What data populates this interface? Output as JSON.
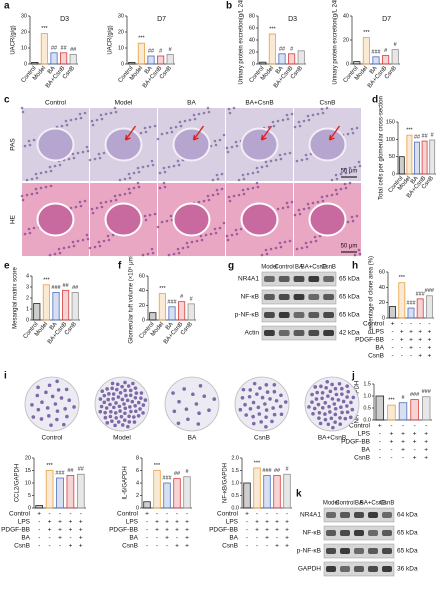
{
  "panel_letters": [
    "a",
    "b",
    "c",
    "d",
    "e",
    "f",
    "g",
    "h",
    "i",
    "j",
    "k"
  ],
  "chart_data": [
    {
      "type": "bar",
      "subtitle": "D3",
      "ylabel": "UACR(g/g)",
      "categories": [
        "Control",
        "Model",
        "BA",
        "BA+CsnB",
        "CsnB"
      ],
      "values": [
        1,
        19,
        7,
        7,
        6
      ],
      "annotations": [
        null,
        "***",
        "##",
        "##",
        "##"
      ],
      "colors": [
        "#222222",
        "#e8a040",
        "#4a6fc0",
        "#d83c3c",
        "#909090"
      ],
      "ylim": [
        0,
        30
      ],
      "yticks": [
        0,
        10,
        20,
        30
      ]
    },
    {
      "type": "bar",
      "subtitle": "D7",
      "ylabel": "UACR(g/g)",
      "categories": [
        "Control",
        "Model",
        "BA",
        "BA+CsnB",
        "CsnB"
      ],
      "values": [
        1,
        13,
        5,
        5,
        6
      ],
      "annotations": [
        null,
        "***",
        "##",
        "#",
        "#"
      ],
      "colors": [
        "#222222",
        "#e8a040",
        "#4a6fc0",
        "#d83c3c",
        "#909090"
      ],
      "ylim": [
        0,
        30
      ],
      "yticks": [
        0,
        10,
        20,
        30
      ]
    },
    {
      "type": "bar",
      "subtitle": "D3",
      "ylabel": "Urinary protein excretion(g/L 24h)",
      "categories": [
        "Control",
        "Model",
        "BA",
        "BA+CsnB",
        "CsnB"
      ],
      "values": [
        3,
        50,
        17,
        17,
        22
      ],
      "annotations": [
        null,
        "***",
        "##",
        "#",
        null
      ],
      "colors": [
        "#222222",
        "#e8a040",
        "#4a6fc0",
        "#d83c3c",
        "#909090"
      ],
      "ylim": [
        0,
        80
      ],
      "yticks": [
        0,
        20,
        40,
        60,
        80
      ]
    },
    {
      "type": "bar",
      "subtitle": "D7",
      "ylabel": "Urinary protein excretion(g/L 24h)",
      "categories": [
        "Control",
        "Model",
        "BA",
        "BA+CsnB",
        "CsnB"
      ],
      "values": [
        2,
        22,
        6,
        7,
        12
      ],
      "annotations": [
        null,
        "***",
        "###",
        "#",
        "#"
      ],
      "colors": [
        "#222222",
        "#e8a040",
        "#4a6fc0",
        "#d83c3c",
        "#909090"
      ],
      "ylim": [
        0,
        40
      ],
      "yticks": [
        0,
        20,
        40
      ]
    },
    {
      "type": "bar",
      "ylabel": "Total cells per glomerular cross-section",
      "categories": [
        "Control",
        "Model",
        "BA",
        "BA+CsnB",
        "CsnB"
      ],
      "values": [
        50,
        112,
        92,
        95,
        98
      ],
      "annotations": [
        null,
        "***",
        "##",
        "##",
        "#"
      ],
      "colors": [
        "#222222",
        "#e8a040",
        "#4a6fc0",
        "#d83c3c",
        "#909090"
      ],
      "ylim": [
        0,
        150
      ],
      "yticks": [
        0,
        50,
        100,
        150
      ]
    },
    {
      "type": "bar",
      "ylabel": "Mesangial matrix score",
      "categories": [
        "Control",
        "Model",
        "BA",
        "BA+CsnB",
        "CsnB"
      ],
      "values": [
        1.5,
        3.2,
        2.5,
        2.7,
        2.5
      ],
      "annotations": [
        null,
        "***",
        "###",
        "##",
        "##"
      ],
      "colors": [
        "#222222",
        "#e8a040",
        "#4a6fc0",
        "#d83c3c",
        "#909090"
      ],
      "ylim": [
        0,
        4
      ],
      "yticks": [
        0,
        1,
        2,
        3,
        4
      ]
    },
    {
      "type": "bar",
      "ylabel": "Glomerular tuft volume (×10⁵ μm³)",
      "categories": [
        "Control",
        "Model",
        "BA",
        "BA+CsnB",
        "CsnB"
      ],
      "values": [
        10,
        36,
        18,
        25,
        22
      ],
      "annotations": [
        null,
        "***",
        "###",
        "#",
        "#"
      ],
      "colors": [
        "#222222",
        "#e8a040",
        "#4a6fc0",
        "#d83c3c",
        "#909090"
      ],
      "ylim": [
        0,
        60
      ],
      "yticks": [
        0,
        20,
        40,
        60
      ]
    },
    {
      "type": "bar",
      "ylabel": "Percentage of clone area (%)",
      "values": [
        15,
        46,
        13,
        25,
        29
      ],
      "annotations": [
        null,
        "***",
        "###",
        "###",
        "###"
      ],
      "colors": [
        "#222222",
        "#e8a040",
        "#4a6fc0",
        "#d83c3c",
        "#909090"
      ],
      "ylim": [
        0,
        60
      ],
      "yticks": [
        0,
        20,
        40,
        60
      ]
    },
    {
      "type": "bar",
      "ylabel": "NR4A1/GAPDH",
      "values": [
        1.0,
        0.62,
        0.72,
        0.85,
        0.97
      ],
      "annotations": [
        null,
        "***",
        "#",
        "###",
        "###"
      ],
      "colors": [
        "#222222",
        "#e8a040",
        "#4a6fc0",
        "#d83c3c",
        "#909090"
      ],
      "ylim": [
        0,
        1.5
      ],
      "yticks": [
        {
          "value": 0,
          "label": "0.0"
        },
        0.5,
        {
          "value": 1,
          "label": "1.0"
        },
        1.5
      ]
    },
    {
      "type": "bar",
      "ylabel": "CCL2/GAPDH",
      "values": [
        1,
        15,
        12,
        13,
        13.5
      ],
      "annotations": [
        null,
        "***",
        "###",
        "##",
        "##"
      ],
      "colors": [
        "#222222",
        "#e8a040",
        "#4a6fc0",
        "#d83c3c",
        "#909090"
      ],
      "ylim": [
        0,
        20
      ],
      "yticks": [
        0,
        5,
        10,
        15,
        20
      ]
    },
    {
      "type": "bar",
      "ylabel": "IL-6/GAPDH",
      "values": [
        1,
        6,
        4,
        4.7,
        5
      ],
      "annotations": [
        null,
        "***",
        "###",
        "##",
        "#"
      ],
      "colors": [
        "#222222",
        "#e8a040",
        "#4a6fc0",
        "#d83c3c",
        "#909090"
      ],
      "ylim": [
        0,
        8
      ],
      "yticks": [
        0,
        2,
        4,
        6,
        8
      ]
    },
    {
      "type": "bar",
      "ylabel": "NF-κB/GAPDH",
      "values": [
        1.0,
        1.6,
        1.3,
        1.3,
        1.35
      ],
      "annotations": [
        null,
        "***",
        "###",
        "##",
        "#"
      ],
      "colors": [
        "#222222",
        "#e8a040",
        "#4a6fc0",
        "#d83c3c",
        "#909090"
      ],
      "ylim": [
        0,
        2
      ],
      "yticks": [
        {
          "value": 0,
          "label": "0.0"
        },
        0.5,
        {
          "value": 1,
          "label": "1.0"
        },
        1.5,
        {
          "value": 2,
          "label": "2.0"
        }
      ]
    }
  ],
  "histology": {
    "columns": [
      "Control",
      "Model",
      "BA",
      "BA+CsnB",
      "CsnB"
    ],
    "rows": [
      "PAS",
      "HE"
    ],
    "scale_bar": "50 μm"
  },
  "blot_g": {
    "lanes": [
      "Model",
      "Control",
      "BA",
      "BA+CsnB",
      "CsnB"
    ],
    "proteins": [
      "NR4A1",
      "NF-κB",
      "p-NF-κB",
      "Actin"
    ],
    "sizes": [
      "65 kDa",
      "65 kDa",
      "65 kDa",
      "42 kDa"
    ]
  },
  "colony": {
    "labels": [
      "Control",
      "Model",
      "BA",
      "CsnB",
      "BA+CsnB"
    ]
  },
  "treatment_table": {
    "rows": [
      "Control",
      "LPS",
      "PDGF-BB",
      "BA",
      "CsnB"
    ],
    "cells": [
      [
        "+",
        "-",
        "-",
        "-",
        "-"
      ],
      [
        "-",
        "+",
        "+",
        "+",
        "+"
      ],
      [
        "-",
        "+",
        "+",
        "+",
        "+"
      ],
      [
        "-",
        "-",
        "+",
        "-",
        "+"
      ],
      [
        "-",
        "-",
        "-",
        "+",
        "+"
      ]
    ]
  },
  "blot_k": {
    "lanes": [
      "Model",
      "Control",
      "BA",
      "BA+CsnB",
      "CsnB"
    ],
    "proteins": [
      "NR4A1",
      "NF-κB",
      "p-NF-κB",
      "GAPDH"
    ],
    "sizes": [
      "64 kDa",
      "65 kDa",
      "65 kDa",
      "36 kDa"
    ]
  }
}
